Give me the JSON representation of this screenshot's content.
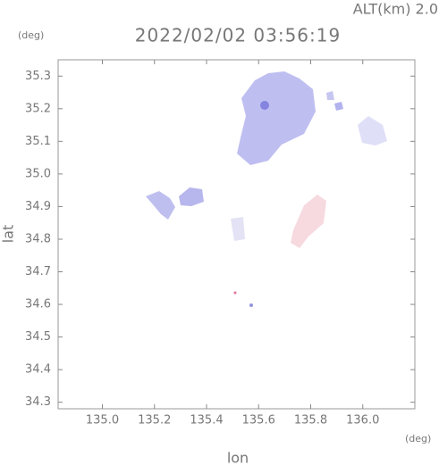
{
  "chart_data": {
    "type": "map",
    "title": "2022/02/02 03:56:19",
    "subtitle": "ALT(km) 2.0",
    "y_unit": "(deg)",
    "x_unit": "(deg)",
    "x_label": "lon",
    "y_label": "lat",
    "xlim": [
      134.83,
      136.2
    ],
    "ylim": [
      34.28,
      35.35
    ],
    "xticks": [
      {
        "value": 135.0,
        "label": "135.0"
      },
      135.2,
      135.4,
      135.6,
      135.8,
      {
        "value": 136.0,
        "label": "136.0"
      }
    ],
    "yticks": [
      34.3,
      34.4,
      34.5,
      34.6,
      34.7,
      34.8,
      34.9,
      {
        "value": 35.0,
        "label": "35.0"
      },
      35.1,
      35.2,
      35.3
    ]
  }
}
